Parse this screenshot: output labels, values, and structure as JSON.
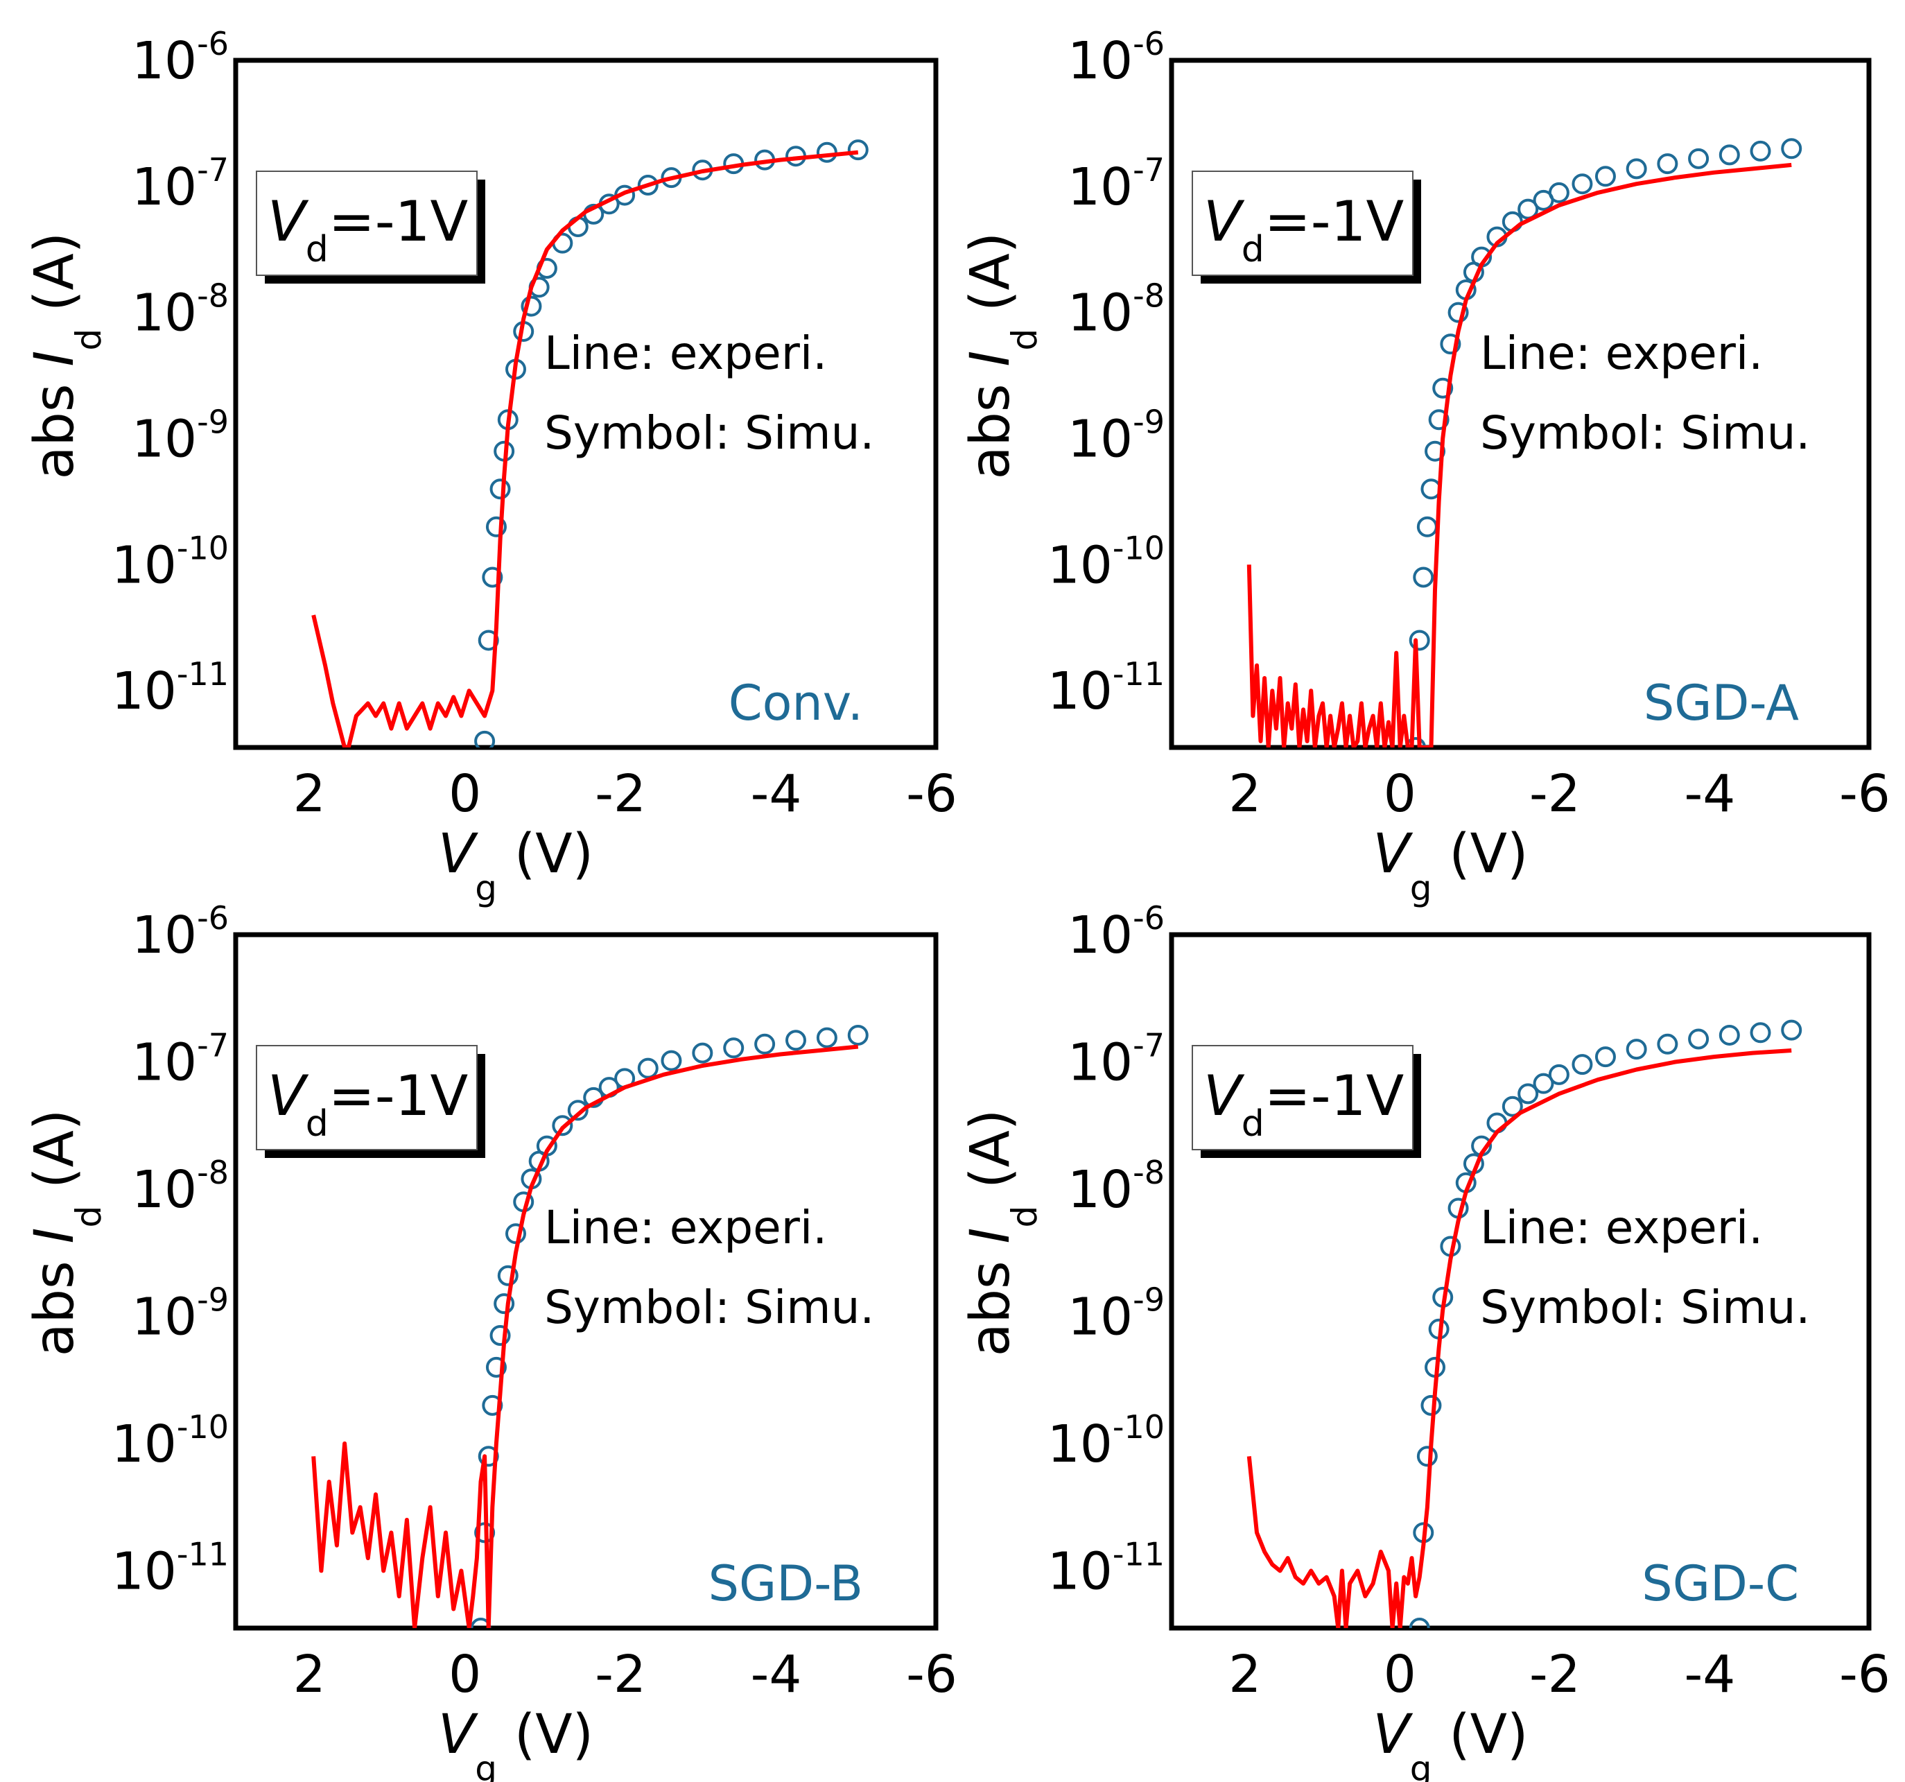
{
  "colors": {
    "experiment": "#ff0000",
    "simulation": "#1f6b96",
    "frame": "#000000",
    "sample_label": "#1f6b96"
  },
  "chart_data": [
    {
      "type": "scatter",
      "title": "",
      "sample_label": "Conv.",
      "bias_box": {
        "prefix": "V",
        "sub": "d",
        "value": "=-1V"
      },
      "legend": {
        "line": "Line: experi.",
        "symbol": "Symbol: Simu."
      },
      "xlabel": {
        "symbol": "V",
        "sub": "g",
        "unit": "(V)"
      },
      "ylabel": {
        "prefix": "abs ",
        "symbol": "I",
        "sub": "d",
        "unit": "(A)"
      },
      "xlim": [
        3,
        -6
      ],
      "ylim_log10": [
        -11.45,
        -6
      ],
      "x_ticks": [
        2,
        0,
        -2,
        -4,
        -6
      ],
      "y_ticks": [
        {
          "base": "10",
          "exp": "-6",
          "log": -6
        },
        {
          "base": "10",
          "exp": "-7",
          "log": -7
        },
        {
          "base": "10",
          "exp": "-8",
          "log": -8
        },
        {
          "base": "10",
          "exp": "-9",
          "log": -9
        },
        {
          "base": "10",
          "exp": "-10",
          "log": -10
        },
        {
          "base": "10",
          "exp": "-11",
          "log": -11
        }
      ],
      "series": [
        {
          "name": "experiment",
          "style": "line",
          "vg": [
            2.0,
            1.85,
            1.75,
            1.6,
            1.55,
            1.45,
            1.3,
            1.2,
            1.1,
            1.0,
            0.9,
            0.8,
            0.7,
            0.6,
            0.5,
            0.4,
            0.3,
            0.2,
            0.1,
            0.0,
            -0.1,
            -0.2,
            -0.3,
            -0.35,
            -0.4,
            -0.45,
            -0.5,
            -0.6,
            -0.7,
            -0.8,
            -1.0,
            -1.2,
            -1.5,
            -2.0,
            -2.5,
            -3.0,
            -3.5,
            -4.0,
            -4.5,
            -5.0
          ],
          "log_id": [
            -10.4,
            -10.8,
            -11.1,
            -11.45,
            -11.45,
            -11.2,
            -11.1,
            -11.2,
            -11.1,
            -11.3,
            -11.1,
            -11.3,
            -11.2,
            -11.1,
            -11.3,
            -11.1,
            -11.2,
            -11.05,
            -11.2,
            -11.0,
            -11.1,
            -11.2,
            -11.0,
            -10.5,
            -9.8,
            -9.3,
            -8.9,
            -8.4,
            -8.05,
            -7.8,
            -7.5,
            -7.35,
            -7.2,
            -7.05,
            -6.95,
            -6.88,
            -6.83,
            -6.79,
            -6.76,
            -6.73
          ]
        },
        {
          "name": "simulation",
          "style": "circle",
          "vg": [
            -0.2,
            -0.25,
            -0.3,
            -0.35,
            -0.4,
            -0.45,
            -0.5,
            -0.6,
            -0.7,
            -0.8,
            -0.9,
            -1.0,
            -1.2,
            -1.4,
            -1.6,
            -1.8,
            -2.0,
            -2.3,
            -2.6,
            -3.0,
            -3.4,
            -3.8,
            -4.2,
            -4.6,
            -5.0
          ],
          "log_id": [
            -11.4,
            -10.6,
            -10.1,
            -9.7,
            -9.4,
            -9.1,
            -8.85,
            -8.45,
            -8.15,
            -7.95,
            -7.8,
            -7.65,
            -7.45,
            -7.32,
            -7.22,
            -7.14,
            -7.07,
            -6.99,
            -6.93,
            -6.87,
            -6.82,
            -6.79,
            -6.76,
            -6.73,
            -6.71
          ]
        }
      ]
    },
    {
      "type": "scatter",
      "title": "",
      "sample_label": "SGD-A",
      "bias_box": {
        "prefix": "V",
        "sub": "d",
        "value": "=-1V"
      },
      "legend": {
        "line": "Line: experi.",
        "symbol": "Symbol: Simu."
      },
      "xlabel": {
        "symbol": "V",
        "sub": "g",
        "unit": "(V)"
      },
      "ylabel": {
        "prefix": "abs ",
        "symbol": "I",
        "sub": "d",
        "unit": "(A)"
      },
      "xlim": [
        3,
        -6
      ],
      "ylim_log10": [
        -11.45,
        -6
      ],
      "x_ticks": [
        2,
        0,
        -2,
        -4,
        -6
      ],
      "y_ticks": [
        {
          "base": "10",
          "exp": "-6",
          "log": -6
        },
        {
          "base": "10",
          "exp": "-7",
          "log": -7
        },
        {
          "base": "10",
          "exp": "-8",
          "log": -8
        },
        {
          "base": "10",
          "exp": "-9",
          "log": -9
        },
        {
          "base": "10",
          "exp": "-10",
          "log": -10
        },
        {
          "base": "10",
          "exp": "-11",
          "log": -11
        }
      ],
      "series": [
        {
          "name": "experiment",
          "style": "line",
          "vg": [
            2.0,
            1.95,
            1.9,
            1.85,
            1.8,
            1.75,
            1.7,
            1.65,
            1.6,
            1.55,
            1.5,
            1.45,
            1.4,
            1.35,
            1.3,
            1.25,
            1.2,
            1.15,
            1.1,
            1.05,
            1.0,
            0.95,
            0.9,
            0.85,
            0.8,
            0.75,
            0.7,
            0.65,
            0.6,
            0.55,
            0.5,
            0.45,
            0.4,
            0.35,
            0.3,
            0.25,
            0.2,
            0.15,
            0.1,
            0.05,
            0.0,
            -0.05,
            -0.1,
            -0.15,
            -0.2,
            -0.25,
            -0.3,
            -0.35,
            -0.4,
            -0.45,
            -0.5,
            -0.6,
            -0.7,
            -0.8,
            -1.0,
            -1.2,
            -1.5,
            -2.0,
            -2.5,
            -3.0,
            -3.5,
            -4.0,
            -4.5,
            -5.0
          ],
          "log_id": [
            -10.0,
            -11.2,
            -10.8,
            -11.4,
            -10.9,
            -11.45,
            -11.0,
            -11.3,
            -10.9,
            -11.45,
            -11.1,
            -11.3,
            -10.95,
            -11.45,
            -11.15,
            -11.4,
            -11.0,
            -11.45,
            -11.2,
            -11.1,
            -11.45,
            -11.2,
            -11.45,
            -11.3,
            -11.1,
            -11.45,
            -11.2,
            -11.45,
            -11.4,
            -11.1,
            -11.45,
            -11.3,
            -11.2,
            -11.45,
            -11.1,
            -11.45,
            -11.25,
            -11.45,
            -10.7,
            -11.45,
            -11.2,
            -11.45,
            -11.45,
            -10.6,
            -11.45,
            -11.45,
            -11.45,
            -11.45,
            -10.2,
            -9.5,
            -9.0,
            -8.5,
            -8.15,
            -7.9,
            -7.62,
            -7.45,
            -7.3,
            -7.15,
            -7.05,
            -6.98,
            -6.93,
            -6.89,
            -6.86,
            -6.83
          ]
        },
        {
          "name": "simulation",
          "style": "circle",
          "vg": [
            -0.15,
            -0.2,
            -0.25,
            -0.3,
            -0.35,
            -0.4,
            -0.45,
            -0.5,
            -0.6,
            -0.7,
            -0.8,
            -0.9,
            -1.0,
            -1.2,
            -1.4,
            -1.6,
            -1.8,
            -2.0,
            -2.3,
            -2.6,
            -3.0,
            -3.4,
            -3.8,
            -4.2,
            -4.6,
            -5.0
          ],
          "log_id": [
            -11.45,
            -10.6,
            -10.1,
            -9.7,
            -9.4,
            -9.1,
            -8.85,
            -8.6,
            -8.25,
            -8.0,
            -7.82,
            -7.68,
            -7.56,
            -7.4,
            -7.28,
            -7.18,
            -7.11,
            -7.05,
            -6.98,
            -6.92,
            -6.86,
            -6.82,
            -6.78,
            -6.75,
            -6.72,
            -6.7
          ]
        }
      ]
    },
    {
      "type": "scatter",
      "title": "",
      "sample_label": "SGD-B",
      "bias_box": {
        "prefix": "V",
        "sub": "d",
        "value": "=-1V"
      },
      "legend": {
        "line": "Line: experi.",
        "symbol": "Symbol: Simu."
      },
      "xlabel": {
        "symbol": "V",
        "sub": "g",
        "unit": "(V)"
      },
      "ylabel": {
        "prefix": "abs ",
        "symbol": "I",
        "sub": "d",
        "unit": "(A)"
      },
      "xlim": [
        3,
        -6
      ],
      "ylim_log10": [
        -11.45,
        -6
      ],
      "x_ticks": [
        2,
        0,
        -2,
        -4,
        -6
      ],
      "y_ticks": [
        {
          "base": "10",
          "exp": "-6",
          "log": -6
        },
        {
          "base": "10",
          "exp": "-7",
          "log": -7
        },
        {
          "base": "10",
          "exp": "-8",
          "log": -8
        },
        {
          "base": "10",
          "exp": "-9",
          "log": -9
        },
        {
          "base": "10",
          "exp": "-10",
          "log": -10
        },
        {
          "base": "10",
          "exp": "-11",
          "log": -11
        }
      ],
      "series": [
        {
          "name": "experiment",
          "style": "line",
          "vg": [
            2.0,
            1.9,
            1.8,
            1.7,
            1.6,
            1.5,
            1.4,
            1.3,
            1.2,
            1.1,
            1.0,
            0.9,
            0.8,
            0.7,
            0.6,
            0.5,
            0.4,
            0.3,
            0.2,
            0.1,
            0.0,
            -0.05,
            -0.1,
            -0.15,
            -0.2,
            -0.25,
            -0.3,
            -0.35,
            -0.4,
            -0.45,
            -0.5,
            -0.6,
            -0.7,
            -0.8,
            -1.0,
            -1.2,
            -1.5,
            -2.0,
            -2.5,
            -3.0,
            -3.5,
            -4.0,
            -4.5,
            -5.0
          ],
          "log_id": [
            -10.1,
            -11.0,
            -10.3,
            -10.8,
            -10.0,
            -10.7,
            -10.5,
            -10.9,
            -10.4,
            -11.0,
            -10.7,
            -11.2,
            -10.6,
            -11.45,
            -10.9,
            -10.5,
            -11.2,
            -10.7,
            -11.3,
            -11.0,
            -11.45,
            -11.2,
            -10.9,
            -10.3,
            -10.1,
            -11.45,
            -10.5,
            -10.0,
            -9.6,
            -9.2,
            -8.9,
            -8.5,
            -8.2,
            -7.98,
            -7.7,
            -7.52,
            -7.36,
            -7.2,
            -7.1,
            -7.03,
            -6.98,
            -6.94,
            -6.91,
            -6.88
          ]
        },
        {
          "name": "simulation",
          "style": "circle",
          "vg": [
            -0.15,
            -0.2,
            -0.25,
            -0.3,
            -0.35,
            -0.4,
            -0.45,
            -0.5,
            -0.6,
            -0.7,
            -0.8,
            -0.9,
            -1.0,
            -1.2,
            -1.4,
            -1.6,
            -1.8,
            -2.0,
            -2.3,
            -2.6,
            -3.0,
            -3.4,
            -3.8,
            -4.2,
            -4.6,
            -5.0
          ],
          "log_id": [
            -11.45,
            -10.7,
            -10.1,
            -9.7,
            -9.4,
            -9.15,
            -8.9,
            -8.68,
            -8.35,
            -8.1,
            -7.92,
            -7.78,
            -7.66,
            -7.5,
            -7.38,
            -7.28,
            -7.2,
            -7.13,
            -7.05,
            -6.99,
            -6.93,
            -6.89,
            -6.86,
            -6.83,
            -6.81,
            -6.79
          ]
        }
      ]
    },
    {
      "type": "scatter",
      "title": "",
      "sample_label": "SGD-C",
      "bias_box": {
        "prefix": "V",
        "sub": "d",
        "value": "=-1V"
      },
      "legend": {
        "line": "Line: experi.",
        "symbol": "Symbol: Simu."
      },
      "xlabel": {
        "symbol": "V",
        "sub": "g",
        "unit": "(V)"
      },
      "ylabel": {
        "prefix": "abs ",
        "symbol": "I",
        "sub": "d",
        "unit": "(A)"
      },
      "xlim": [
        3,
        -6
      ],
      "ylim_log10": [
        -11.45,
        -6
      ],
      "x_ticks": [
        2,
        0,
        -2,
        -4,
        -6
      ],
      "y_ticks": [
        {
          "base": "10",
          "exp": "-6",
          "log": -6
        },
        {
          "base": "10",
          "exp": "-7",
          "log": -7
        },
        {
          "base": "10",
          "exp": "-8",
          "log": -8
        },
        {
          "base": "10",
          "exp": "-9",
          "log": -9
        },
        {
          "base": "10",
          "exp": "-10",
          "log": -10
        },
        {
          "base": "10",
          "exp": "-11",
          "log": -11
        }
      ],
      "series": [
        {
          "name": "experiment",
          "style": "line",
          "vg": [
            2.0,
            1.9,
            1.8,
            1.7,
            1.6,
            1.5,
            1.4,
            1.3,
            1.2,
            1.1,
            1.0,
            0.9,
            0.85,
            0.8,
            0.75,
            0.7,
            0.6,
            0.5,
            0.4,
            0.3,
            0.2,
            0.15,
            0.1,
            0.05,
            0.0,
            -0.05,
            -0.1,
            -0.15,
            -0.2,
            -0.25,
            -0.3,
            -0.35,
            -0.4,
            -0.45,
            -0.5,
            -0.6,
            -0.7,
            -0.8,
            -1.0,
            -1.2,
            -1.5,
            -2.0,
            -2.5,
            -3.0,
            -3.5,
            -4.0,
            -4.5,
            -5.0
          ],
          "log_id": [
            -10.1,
            -10.7,
            -10.85,
            -10.95,
            -11.0,
            -10.9,
            -11.05,
            -11.1,
            -11.0,
            -11.1,
            -11.05,
            -11.2,
            -11.45,
            -11.0,
            -11.45,
            -11.1,
            -11.0,
            -11.2,
            -11.1,
            -10.85,
            -11.0,
            -11.45,
            -11.1,
            -11.45,
            -11.05,
            -11.1,
            -10.9,
            -11.2,
            -11.05,
            -10.8,
            -10.5,
            -10.0,
            -9.6,
            -9.25,
            -8.95,
            -8.55,
            -8.25,
            -8.02,
            -7.72,
            -7.55,
            -7.4,
            -7.25,
            -7.14,
            -7.06,
            -7.0,
            -6.96,
            -6.93,
            -6.91
          ]
        },
        {
          "name": "simulation",
          "style": "circle",
          "vg": [
            -0.2,
            -0.25,
            -0.3,
            -0.35,
            -0.4,
            -0.45,
            -0.5,
            -0.6,
            -0.7,
            -0.8,
            -0.9,
            -1.0,
            -1.2,
            -1.4,
            -1.6,
            -1.8,
            -2.0,
            -2.3,
            -2.6,
            -3.0,
            -3.4,
            -3.8,
            -4.2,
            -4.6,
            -5.0
          ],
          "log_id": [
            -11.45,
            -10.7,
            -10.1,
            -9.7,
            -9.4,
            -9.1,
            -8.85,
            -8.45,
            -8.15,
            -7.95,
            -7.8,
            -7.66,
            -7.48,
            -7.35,
            -7.25,
            -7.17,
            -7.1,
            -7.02,
            -6.96,
            -6.9,
            -6.86,
            -6.82,
            -6.79,
            -6.77,
            -6.75
          ]
        }
      ]
    }
  ]
}
